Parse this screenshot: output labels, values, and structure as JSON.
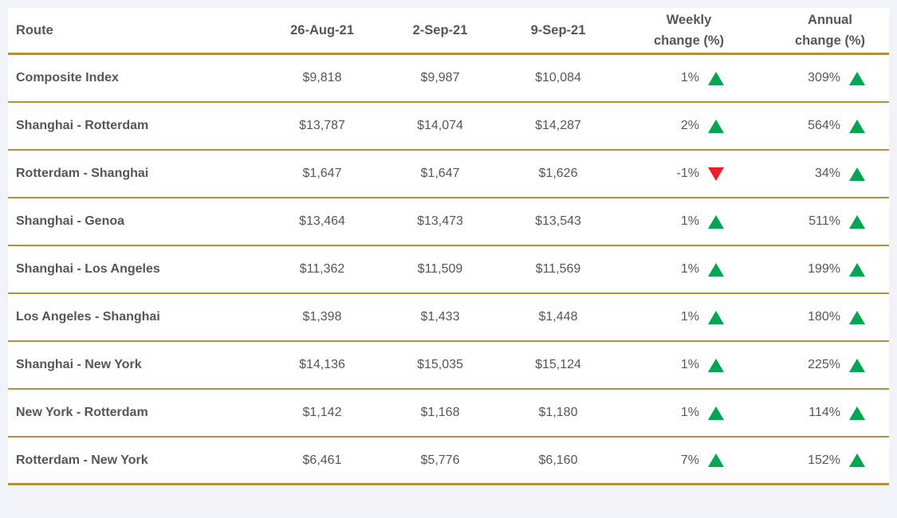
{
  "colors": {
    "gold_border": "#B2903C",
    "green_up": "#00A651",
    "red_down": "#EE1C25",
    "text": "#55565A",
    "page_background": "#F2F3F8"
  },
  "chart_data": {
    "type": "table",
    "title": "",
    "columns": [
      "Route",
      "26-Aug-21",
      "2-Sep-21",
      "9-Sep-21",
      "Weekly change (%)",
      "Annual change (%)"
    ],
    "rows": [
      {
        "route": "Composite Index",
        "v1": 9818,
        "v2": 9987,
        "v3": 10084,
        "weekly_change_pct": 1,
        "annual_change_pct": 309
      },
      {
        "route": "Shanghai - Rotterdam",
        "v1": 13787,
        "v2": 14074,
        "v3": 14287,
        "weekly_change_pct": 2,
        "annual_change_pct": 564
      },
      {
        "route": "Rotterdam - Shanghai",
        "v1": 1647,
        "v2": 1647,
        "v3": 1626,
        "weekly_change_pct": -1,
        "annual_change_pct": 34
      },
      {
        "route": "Shanghai - Genoa",
        "v1": 13464,
        "v2": 13473,
        "v3": 13543,
        "weekly_change_pct": 1,
        "annual_change_pct": 511
      },
      {
        "route": "Shanghai - Los Angeles",
        "v1": 11362,
        "v2": 11509,
        "v3": 11569,
        "weekly_change_pct": 1,
        "annual_change_pct": 199
      },
      {
        "route": "Los Angeles - Shanghai",
        "v1": 1398,
        "v2": 1433,
        "v3": 1448,
        "weekly_change_pct": 1,
        "annual_change_pct": 180
      },
      {
        "route": "Shanghai - New York",
        "v1": 14136,
        "v2": 15035,
        "v3": 15124,
        "weekly_change_pct": 1,
        "annual_change_pct": 225
      },
      {
        "route": "New York - Rotterdam",
        "v1": 1142,
        "v2": 1168,
        "v3": 1180,
        "weekly_change_pct": 1,
        "annual_change_pct": 114
      },
      {
        "route": "Rotterdam - New York",
        "v1": 6461,
        "v2": 5776,
        "v3": 6160,
        "weekly_change_pct": 7,
        "annual_change_pct": 152
      }
    ]
  },
  "table": {
    "header": {
      "route": "Route",
      "date1": "26-Aug-21",
      "date2": "2-Sep-21",
      "date3": "9-Sep-21",
      "weekly": "Weekly\nchange (%)",
      "annual": "Annual\nchange (%)"
    },
    "rows": [
      {
        "route": "Composite Index",
        "v1": "$9,818",
        "v2": "$9,987",
        "v3": "$10,084",
        "weekly": "1%",
        "weekly_dir": "up",
        "annual": "309%",
        "annual_dir": "up"
      },
      {
        "route": "Shanghai - Rotterdam",
        "v1": "$13,787",
        "v2": "$14,074",
        "v3": "$14,287",
        "weekly": "2%",
        "weekly_dir": "up",
        "annual": "564%",
        "annual_dir": "up"
      },
      {
        "route": "Rotterdam - Shanghai",
        "v1": "$1,647",
        "v2": "$1,647",
        "v3": "$1,626",
        "weekly": "-1%",
        "weekly_dir": "down",
        "annual": "34%",
        "annual_dir": "up"
      },
      {
        "route": "Shanghai - Genoa",
        "v1": "$13,464",
        "v2": "$13,473",
        "v3": "$13,543",
        "weekly": "1%",
        "weekly_dir": "up",
        "annual": "511%",
        "annual_dir": "up"
      },
      {
        "route": "Shanghai - Los Angeles",
        "v1": "$11,362",
        "v2": "$11,509",
        "v3": "$11,569",
        "weekly": "1%",
        "weekly_dir": "up",
        "annual": "199%",
        "annual_dir": "up"
      },
      {
        "route": "Los Angeles - Shanghai",
        "v1": "$1,398",
        "v2": "$1,433",
        "v3": "$1,448",
        "weekly": "1%",
        "weekly_dir": "up",
        "annual": "180%",
        "annual_dir": "up"
      },
      {
        "route": "Shanghai - New York",
        "v1": "$14,136",
        "v2": "$15,035",
        "v3": "$15,124",
        "weekly": "1%",
        "weekly_dir": "up",
        "annual": "225%",
        "annual_dir": "up"
      },
      {
        "route": "New York - Rotterdam",
        "v1": "$1,142",
        "v2": "$1,168",
        "v3": "$1,180",
        "weekly": "1%",
        "weekly_dir": "up",
        "annual": "114%",
        "annual_dir": "up"
      },
      {
        "route": "Rotterdam - New York",
        "v1": "$6,461",
        "v2": "$5,776",
        "v3": "$6,160",
        "weekly": "7%",
        "weekly_dir": "up",
        "annual": "152%",
        "annual_dir": "up"
      }
    ]
  }
}
